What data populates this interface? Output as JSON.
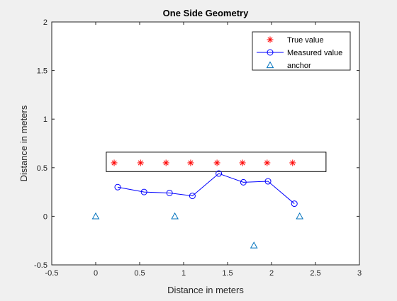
{
  "chart_data": {
    "type": "scatter",
    "title": "One Side Geometry",
    "xlabel": "Distance in meters",
    "ylabel": "Distance in meters",
    "xlim": [
      -0.5,
      3
    ],
    "ylim": [
      -0.5,
      2
    ],
    "xticks": [
      "-0.5",
      "0",
      "0.5",
      "1",
      "1.5",
      "2",
      "2.5",
      "3"
    ],
    "yticks": [
      "-0.5",
      "0",
      "0.5",
      "1",
      "1.5",
      "2"
    ],
    "legend_position": "top-right",
    "series": [
      {
        "name": "True value",
        "marker": "asterisk",
        "line": false,
        "color": "#ff0000",
        "x": [
          0.21,
          0.51,
          0.8,
          1.08,
          1.38,
          1.67,
          1.95,
          2.24
        ],
        "y": [
          0.55,
          0.55,
          0.55,
          0.55,
          0.55,
          0.55,
          0.55,
          0.55
        ]
      },
      {
        "name": "Measured value",
        "marker": "circle",
        "line": true,
        "color": "#0000ff",
        "x": [
          0.25,
          0.55,
          0.84,
          1.1,
          1.4,
          1.68,
          1.96,
          2.26
        ],
        "y": [
          0.3,
          0.25,
          0.24,
          0.21,
          0.44,
          0.35,
          0.36,
          0.13
        ]
      },
      {
        "name": "anchor",
        "marker": "triangle",
        "line": false,
        "color": "#0072bd",
        "x": [
          0,
          0.9,
          1.8,
          2.32
        ],
        "y": [
          0,
          0,
          -0.3,
          0
        ]
      }
    ],
    "annotation_box": {
      "x": [
        0.12,
        2.62
      ],
      "y": [
        0.46,
        0.66
      ]
    }
  }
}
